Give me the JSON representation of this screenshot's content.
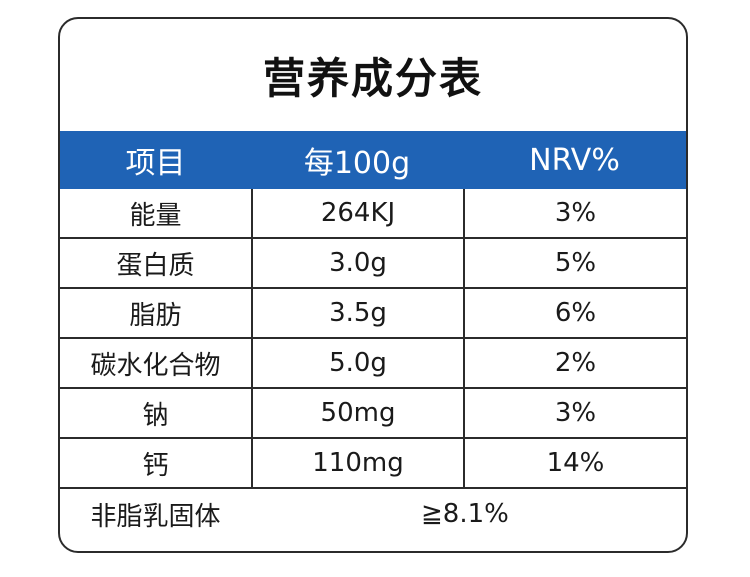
{
  "title": "营养成分表",
  "colors": {
    "header_bg": "#1f63b5",
    "header_text": "#ffffff",
    "border": "#2b2b2b"
  },
  "table": {
    "headers": [
      "项目",
      "每100g",
      "NRV%"
    ],
    "rows": [
      {
        "item": "能量",
        "per100g": "264KJ",
        "nrv": "3%"
      },
      {
        "item": "蛋白质",
        "per100g": "3.0g",
        "nrv": "5%"
      },
      {
        "item": "脂肪",
        "per100g": "3.5g",
        "nrv": "6%"
      },
      {
        "item": "碳水化合物",
        "per100g": "5.0g",
        "nrv": "2%"
      },
      {
        "item": "钠",
        "per100g": "50mg",
        "nrv": "3%"
      },
      {
        "item": "钙",
        "per100g": "110mg",
        "nrv": "14%"
      }
    ],
    "footer": {
      "label": "非脂乳固体",
      "value": "≧8.1%"
    }
  }
}
